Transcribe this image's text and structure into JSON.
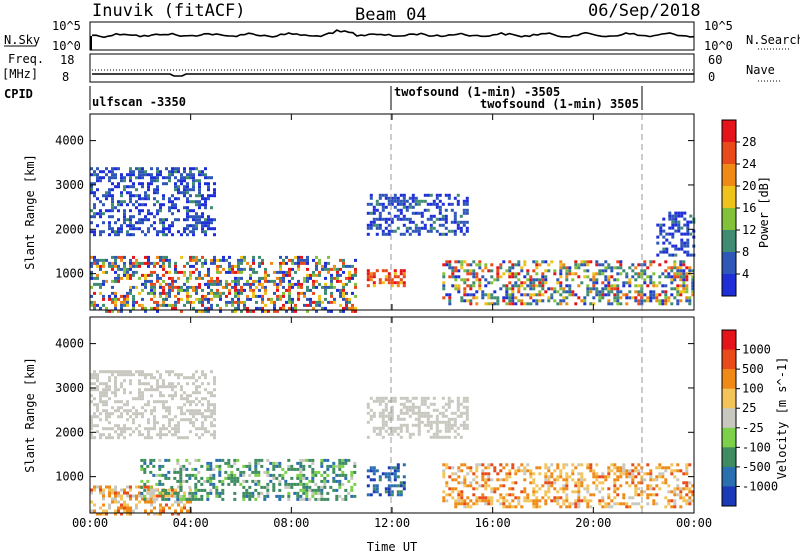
{
  "header": {
    "station": "Inuvik (fitACF)",
    "beam": "Beam 04",
    "date": "06/Sep/2018"
  },
  "noise_panel": {
    "left_label": "N.Sky",
    "right_label": "N.Search",
    "left_ticks": [
      "10^5",
      "10^0"
    ],
    "right_ticks": [
      "10^5",
      "10^0"
    ]
  },
  "freq_panel": {
    "left_label_line1": "Freq.",
    "left_label_line2": "[MHz]",
    "right_label": "Nave",
    "left_ticks": [
      "18",
      "8"
    ],
    "right_ticks": [
      "60",
      "0"
    ]
  },
  "cpid_panel": {
    "label": "CPID",
    "programs": [
      {
        "name": "ulfscan -3350",
        "start_hour": 0.0,
        "end_hour": 12.0
      },
      {
        "name": "twofsound (1-min) -3505",
        "start_hour": 12.0,
        "end_hour": 22.0
      },
      {
        "name": "twofsound (1-min) 3505",
        "start_hour": 12.0,
        "end_hour": 22.0
      }
    ]
  },
  "chart_data": [
    {
      "type": "heatmap",
      "title": "Power",
      "xlabel": "",
      "ylabel": "Slant Range [km]",
      "x_ticks": [
        "00:00",
        "04:00",
        "08:00",
        "12:00",
        "16:00",
        "20:00",
        "00:00"
      ],
      "xlim_hours": [
        0,
        24
      ],
      "y_ticks": [
        1000,
        2000,
        3000,
        4000
      ],
      "ylim_km": [
        180,
        4600
      ],
      "colorbar": {
        "label": "Power [dB]",
        "tick_labels": [
          "4",
          "8",
          "12",
          "16",
          "20",
          "24",
          "28"
        ],
        "colors": [
          "#1f2fd8",
          "#2e57b8",
          "#3f8c72",
          "#82c23a",
          "#f0c21c",
          "#ef8a17",
          "#e84a1a",
          "#e5141a"
        ]
      },
      "echo_regions": [
        {
          "t_start": 0.0,
          "t_end": 10.5,
          "r_start": 180,
          "r_end": 1400,
          "level": "mixed"
        },
        {
          "t_start": 0.0,
          "t_end": 5.0,
          "r_start": 1900,
          "r_end": 3400,
          "level": "low"
        },
        {
          "t_start": 11.0,
          "t_end": 12.5,
          "r_start": 700,
          "r_end": 1100,
          "level": "high"
        },
        {
          "t_start": 11.0,
          "t_end": 15.0,
          "r_start": 1900,
          "r_end": 2800,
          "level": "low"
        },
        {
          "t_start": 14.0,
          "t_end": 24.0,
          "r_start": 300,
          "r_end": 1300,
          "level": "mixed"
        },
        {
          "t_start": 22.5,
          "t_end": 24.0,
          "r_start": 1400,
          "r_end": 2400,
          "level": "low"
        }
      ]
    },
    {
      "type": "heatmap",
      "title": "Velocity",
      "xlabel": "Time UT",
      "ylabel": "Slant Range [km]",
      "x_ticks": [
        "00:00",
        "04:00",
        "08:00",
        "12:00",
        "16:00",
        "20:00",
        "00:00"
      ],
      "xlim_hours": [
        0,
        24
      ],
      "y_ticks": [
        1000,
        2000,
        3000,
        4000
      ],
      "ylim_km": [
        180,
        4600
      ],
      "colorbar": {
        "label": "Velocity [m s^-1]",
        "tick_labels": [
          "1000",
          "500",
          "100",
          "25",
          "-25",
          "-100",
          "-500",
          "-1000"
        ],
        "colors": [
          "#1a3ab8",
          "#2a6fb0",
          "#3f8c60",
          "#7cd04a",
          "#c8c8c0",
          "#f3c45a",
          "#ef8a17",
          "#e84a1a",
          "#e5141a"
        ]
      },
      "echo_regions": [
        {
          "t_start": 0.0,
          "t_end": 5.0,
          "r_start": 1900,
          "r_end": 3400,
          "level": "ground"
        },
        {
          "t_start": 0.0,
          "t_end": 4.0,
          "r_start": 180,
          "r_end": 800,
          "level": "away"
        },
        {
          "t_start": 2.0,
          "t_end": 10.5,
          "r_start": 500,
          "r_end": 1400,
          "level": "toward"
        },
        {
          "t_start": 11.0,
          "t_end": 12.5,
          "r_start": 600,
          "r_end": 1300,
          "level": "toward_fast"
        },
        {
          "t_start": 11.0,
          "t_end": 15.0,
          "r_start": 1900,
          "r_end": 2800,
          "level": "ground"
        },
        {
          "t_start": 14.0,
          "t_end": 24.0,
          "r_start": 300,
          "r_end": 1300,
          "level": "away"
        }
      ]
    }
  ]
}
